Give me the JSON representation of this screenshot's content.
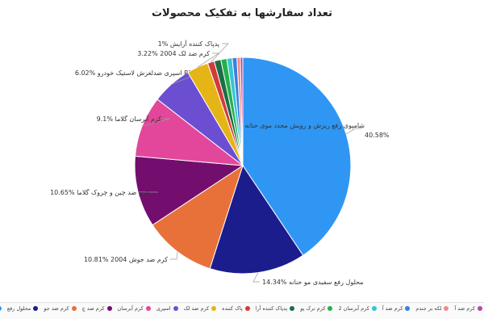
{
  "chart_data": {
    "type": "pie",
    "title": "تعداد سفارشها به تفکیک محصولات",
    "slices": [
      {
        "label": "شامپوی رفع ریزش و رویش مجدد موی حنانه",
        "value": 40.58,
        "value_label": "40.58%",
        "color": "#2f96f3",
        "legend": "شامپوی رفع"
      },
      {
        "label": "محلول رفع سفیدی مو حنانه",
        "value": 14.34,
        "value_label": "14.34%",
        "color": "#1c1d8c",
        "legend": "محلول رفع"
      },
      {
        "label": "کرم ضد جوش 2004",
        "value": 10.81,
        "value_label": "10.81%",
        "color": "#e8713a",
        "legend": "کرم ضد جو"
      },
      {
        "label": "کرم ضد چین و چروک گلاما",
        "value": 10.65,
        "value_label": "10.65%",
        "color": "#730e6e",
        "legend": "کرم ضد چ"
      },
      {
        "label": "کرم آبرسان گلاما",
        "value": 9.1,
        "value_label": "9.1%",
        "color": "#e3479b",
        "legend": "کرم آبرسان"
      },
      {
        "label": "اسپری ضدلغزش لاستیک خودرو P3",
        "value": 6.02,
        "value_label": "6.02%",
        "color": "#6c4fd1",
        "legend": "اسپری"
      },
      {
        "label": "کرم ضد لک 2004",
        "value": 3.22,
        "value_label": "3.22%",
        "color": "#e5b416",
        "legend": "کرم ضد لک"
      },
      {
        "label": "پدپاک کننده آرایش",
        "value": 1,
        "value_label": "1%",
        "color": "#d23b3b",
        "legend": "پاک کننده"
      },
      {
        "label": "",
        "value": 1,
        "value_label": "",
        "color": "#1b6f45",
        "legend": "پدپاک کننده آرا"
      },
      {
        "label": "",
        "value": 0.9,
        "value_label": "",
        "color": "#25b04f",
        "legend": "کرم ترک پو"
      },
      {
        "label": "",
        "value": 0.8,
        "value_label": "",
        "color": "#34c4d6",
        "legend": "کرم آبرسان 2"
      },
      {
        "label": "",
        "value": 0.7,
        "value_label": "",
        "color": "#3a7fe0",
        "legend": "کرم ضد آ"
      },
      {
        "label": "",
        "value": 0.5,
        "value_label": "",
        "color": "#f08a8a",
        "legend": "لکه بر جندم"
      },
      {
        "label": "",
        "value": 0.37,
        "value_label": "",
        "color": "#b24aa9",
        "legend": "کرم ضد آ"
      }
    ]
  }
}
